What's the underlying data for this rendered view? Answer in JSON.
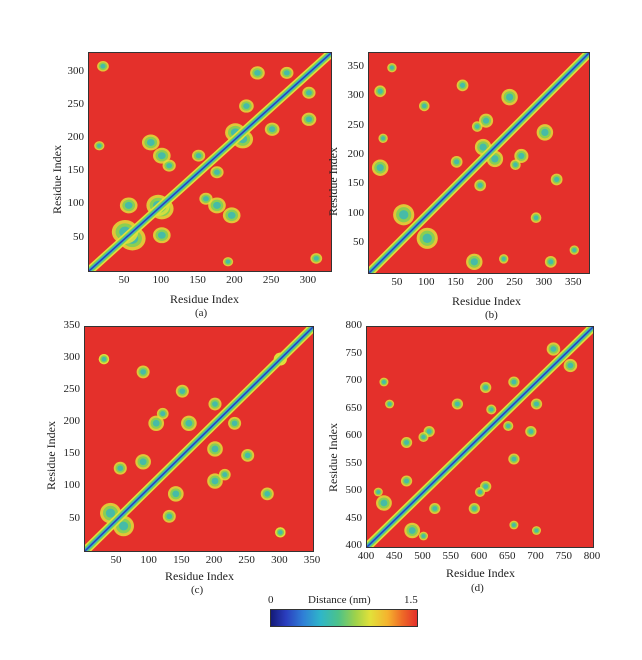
{
  "figure": {
    "colorbar": {
      "label": "Distance (nm)",
      "min_label": "0",
      "max_label": "1.5"
    }
  },
  "chart_data": [
    {
      "type": "heatmap",
      "panel": "(a)",
      "xlabel": "Residue Index",
      "ylabel": "Residue Index",
      "xlim": [
        1,
        330
      ],
      "ylim": [
        1,
        330
      ],
      "xticks": [
        50,
        100,
        150,
        200,
        250,
        300
      ],
      "yticks": [
        50,
        100,
        150,
        200,
        250,
        300
      ],
      "colorscale": {
        "label": "Distance (nm)",
        "min": 0,
        "max": 1.5
      },
      "contact_blobs": [
        [
          60,
          50,
          18
        ],
        [
          100,
          95,
          16
        ],
        [
          55,
          100,
          12
        ],
        [
          175,
          100,
          12
        ],
        [
          85,
          195,
          12
        ],
        [
          210,
          200,
          14
        ],
        [
          250,
          215,
          10
        ],
        [
          150,
          175,
          9
        ],
        [
          110,
          160,
          9
        ],
        [
          300,
          230,
          10
        ],
        [
          270,
          300,
          9
        ],
        [
          20,
          310,
          8
        ],
        [
          15,
          190,
          7
        ]
      ]
    },
    {
      "type": "heatmap",
      "panel": "(b)",
      "xlabel": "Residue Index",
      "ylabel": "Residue Index",
      "xlim": [
        1,
        375
      ],
      "ylim": [
        1,
        375
      ],
      "xticks": [
        50,
        100,
        150,
        200,
        250,
        300,
        350
      ],
      "yticks": [
        50,
        100,
        150,
        200,
        250,
        300,
        350
      ],
      "colorscale": {
        "label": "Distance (nm)",
        "min": 0,
        "max": 1.5
      },
      "contact_blobs": [
        [
          60,
          100,
          18
        ],
        [
          20,
          180,
          14
        ],
        [
          215,
          195,
          14
        ],
        [
          260,
          200,
          12
        ],
        [
          300,
          240,
          14
        ],
        [
          320,
          160,
          10
        ],
        [
          150,
          190,
          10
        ],
        [
          95,
          285,
          9
        ],
        [
          310,
          20,
          10
        ],
        [
          230,
          25,
          8
        ],
        [
          40,
          350,
          8
        ],
        [
          185,
          250,
          9
        ]
      ]
    },
    {
      "type": "heatmap",
      "panel": "(c)",
      "xlabel": "Residue Index",
      "ylabel": "Residue Index",
      "xlim": [
        1,
        350
      ],
      "ylim": [
        1,
        350
      ],
      "xticks": [
        50,
        100,
        150,
        200,
        250,
        300,
        350
      ],
      "yticks": [
        50,
        100,
        150,
        200,
        250,
        300,
        350
      ],
      "colorscale": {
        "label": "Distance (nm)",
        "min": 0,
        "max": 1.5
      },
      "contact_blobs": [
        [
          40,
          60,
          16
        ],
        [
          90,
          140,
          12
        ],
        [
          110,
          200,
          12
        ],
        [
          160,
          200,
          12
        ],
        [
          200,
          230,
          10
        ],
        [
          130,
          55,
          10
        ],
        [
          250,
          150,
          10
        ],
        [
          300,
          300,
          10
        ],
        [
          90,
          280,
          10
        ],
        [
          30,
          300,
          8
        ],
        [
          300,
          30,
          8
        ],
        [
          215,
          120,
          9
        ]
      ]
    },
    {
      "type": "heatmap",
      "panel": "(d)",
      "xlabel": "Residue Index",
      "ylabel": "Residue Index",
      "xlim": [
        400,
        800
      ],
      "ylim": [
        400,
        800
      ],
      "xticks": [
        400,
        450,
        500,
        550,
        600,
        650,
        700,
        750,
        800
      ],
      "yticks": [
        400,
        450,
        500,
        550,
        600,
        650,
        700,
        750,
        800
      ],
      "colorscale": {
        "label": "Distance (nm)",
        "min": 0,
        "max": 1.5
      },
      "contact_blobs": [
        [
          430,
          480,
          14
        ],
        [
          470,
          590,
          10
        ],
        [
          510,
          610,
          10
        ],
        [
          560,
          660,
          10
        ],
        [
          610,
          690,
          10
        ],
        [
          650,
          620,
          9
        ],
        [
          700,
          660,
          10
        ],
        [
          760,
          730,
          12
        ],
        [
          520,
          470,
          10
        ],
        [
          600,
          500,
          9
        ],
        [
          430,
          700,
          8
        ],
        [
          660,
          440,
          8
        ],
        [
          500,
          420,
          8
        ]
      ]
    }
  ]
}
